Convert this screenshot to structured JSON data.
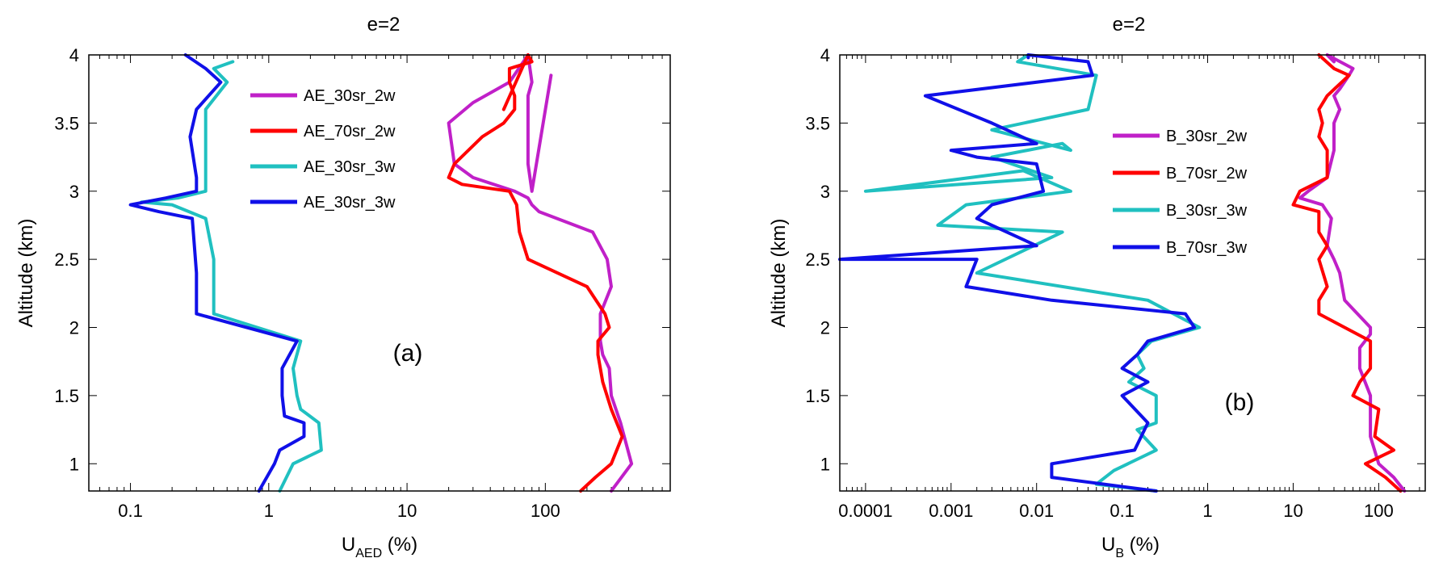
{
  "chart_data": [
    {
      "type": "line",
      "title": "e=2",
      "xlabel_main": "U",
      "xlabel_sub": "AED",
      "xlabel_unit": " (%)",
      "ylabel": "Altitude (km)",
      "annotation": "(a)",
      "xscale": "log",
      "xlim": [
        0.05,
        800
      ],
      "ylim": [
        0.8,
        4
      ],
      "xticks": [
        0.1,
        1,
        10,
        100
      ],
      "xtick_labels": [
        "0.1",
        "1",
        "10",
        "100"
      ],
      "yticks": [
        1,
        1.5,
        2,
        2.5,
        3,
        3.5,
        4
      ],
      "ytick_labels": [
        "1",
        "1.5",
        "2",
        "2.5",
        "3",
        "3.5",
        "4"
      ],
      "legend_position": "upper-center",
      "series": [
        {
          "name": "AE_30sr_2w",
          "color": "#c020c8",
          "x": [
            300,
            420,
            350,
            300,
            290,
            260,
            250,
            250,
            300,
            280,
            220,
            90,
            80,
            75,
            60,
            30,
            22,
            20,
            30,
            55,
            75,
            80,
            75,
            75,
            75,
            80,
            110
          ],
          "y": [
            0.8,
            1.0,
            1.3,
            1.5,
            1.7,
            1.8,
            1.9,
            2.1,
            2.3,
            2.5,
            2.7,
            2.85,
            2.9,
            2.95,
            3.0,
            3.1,
            3.2,
            3.5,
            3.65,
            3.8,
            4.0,
            3.8,
            3.7,
            3.5,
            3.2,
            3.0,
            3.85
          ]
        },
        {
          "name": "AE_70sr_2w",
          "color": "#ff0000",
          "x": [
            180,
            230,
            300,
            360,
            300,
            260,
            240,
            240,
            290,
            270,
            200,
            75,
            65,
            62,
            55,
            25,
            20,
            22,
            35,
            50,
            60,
            60,
            55,
            55,
            55,
            80,
            75,
            50
          ],
          "y": [
            0.8,
            0.9,
            1.0,
            1.2,
            1.4,
            1.6,
            1.8,
            1.9,
            2.0,
            2.1,
            2.3,
            2.5,
            2.7,
            2.9,
            3.0,
            3.05,
            3.1,
            3.2,
            3.4,
            3.5,
            3.6,
            3.7,
            3.8,
            3.85,
            3.9,
            3.95,
            4.0,
            3.6
          ]
        },
        {
          "name": "AE_30sr_3w",
          "color": "#20c0c0",
          "x": [
            1.2,
            1.5,
            2.4,
            2.3,
            1.7,
            1.6,
            1.5,
            1.7,
            0.4,
            0.4,
            0.35,
            0.2,
            0.12,
            0.22,
            0.35,
            0.35,
            0.35,
            0.5,
            0.4,
            0.55
          ],
          "y": [
            0.8,
            1.0,
            1.1,
            1.3,
            1.4,
            1.5,
            1.7,
            1.9,
            2.1,
            2.5,
            2.8,
            2.9,
            2.92,
            2.95,
            3.0,
            3.3,
            3.6,
            3.8,
            3.9,
            3.95
          ]
        },
        {
          "name": "AE_30sr_3w",
          "color": "#1010e8",
          "x": [
            0.85,
            1.1,
            1.2,
            1.8,
            1.8,
            1.3,
            1.25,
            1.25,
            1.6,
            0.3,
            0.3,
            0.28,
            0.16,
            0.1,
            0.18,
            0.3,
            0.3,
            0.27,
            0.3,
            0.45,
            0.35,
            0.25
          ],
          "y": [
            0.8,
            1.0,
            1.1,
            1.2,
            1.3,
            1.35,
            1.5,
            1.7,
            1.9,
            2.1,
            2.4,
            2.8,
            2.85,
            2.9,
            2.95,
            3.0,
            3.1,
            3.4,
            3.6,
            3.8,
            3.9,
            4.0
          ]
        }
      ],
      "legend_labels": [
        "AE_30sr_2w",
        "AE_70sr_2w",
        "AE_30sr_3w",
        "AE_30sr_3w"
      ]
    },
    {
      "type": "line",
      "title": "e=2",
      "xlabel_main": "U",
      "xlabel_sub": "B",
      "xlabel_unit": " (%)",
      "ylabel": "Altitude (km)",
      "annotation": "(b)",
      "xscale": "log",
      "xlim": [
        5e-05,
        350
      ],
      "ylim": [
        0.8,
        4
      ],
      "xticks": [
        0.0001,
        0.001,
        0.01,
        0.1,
        1,
        10,
        100
      ],
      "xtick_labels": [
        "0.0001",
        "0.001",
        "0.01",
        "0.1",
        "1",
        "10",
        "100"
      ],
      "yticks": [
        1,
        1.5,
        2,
        2.5,
        3,
        3.5,
        4
      ],
      "ytick_labels": [
        "1",
        "1.5",
        "2",
        "2.5",
        "3",
        "3.5",
        "4"
      ],
      "legend_position": "upper-center",
      "series": [
        {
          "name": "B_30sr_2w",
          "color": "#c020c8",
          "x": [
            200,
            150,
            100,
            80,
            80,
            60,
            60,
            80,
            80,
            40,
            35,
            30,
            25,
            28,
            22,
            12,
            15,
            25,
            30,
            30,
            35,
            30,
            35,
            45,
            50,
            25,
            30
          ],
          "y": [
            0.8,
            0.9,
            1.0,
            1.2,
            1.5,
            1.7,
            1.85,
            1.95,
            2.0,
            2.2,
            2.4,
            2.5,
            2.6,
            2.8,
            2.9,
            2.95,
            3.0,
            3.1,
            3.3,
            3.5,
            3.6,
            3.7,
            3.75,
            3.85,
            3.9,
            4.0,
            3.95
          ]
        },
        {
          "name": "B_70sr_2w",
          "color": "#ff0000",
          "x": [
            180,
            120,
            70,
            150,
            90,
            100,
            50,
            60,
            80,
            80,
            20,
            20,
            25,
            20,
            25,
            20,
            20,
            10,
            12,
            25,
            25,
            20,
            22,
            20,
            25,
            45,
            30,
            20
          ],
          "y": [
            0.8,
            0.9,
            1.0,
            1.1,
            1.2,
            1.4,
            1.5,
            1.6,
            1.7,
            1.9,
            2.1,
            2.2,
            2.3,
            2.5,
            2.6,
            2.7,
            2.85,
            2.9,
            3.0,
            3.1,
            3.3,
            3.4,
            3.5,
            3.6,
            3.7,
            3.85,
            3.9,
            4.0
          ]
        },
        {
          "name": "B_30sr_3w",
          "color": "#20c0c0",
          "x": [
            0.25,
            0.05,
            0.08,
            0.25,
            0.15,
            0.25,
            0.25,
            0.12,
            0.18,
            0.15,
            0.22,
            0.8,
            0.2,
            0.002,
            0.02,
            0.0007,
            0.0015,
            0.025,
            0.007,
            0.0001,
            0.015,
            0.003,
            0.02,
            0.025,
            0.003,
            0.04,
            0.05,
            0.006,
            0.008
          ],
          "y": [
            0.8,
            0.85,
            0.95,
            1.1,
            1.25,
            1.3,
            1.5,
            1.6,
            1.7,
            1.8,
            1.9,
            2.0,
            2.2,
            2.4,
            2.7,
            2.75,
            2.9,
            3.0,
            3.15,
            3.0,
            3.1,
            3.25,
            3.35,
            3.3,
            3.45,
            3.6,
            3.85,
            3.95,
            4.0
          ]
        },
        {
          "name": "B_70sr_3w",
          "color": "#1010e8",
          "x": [
            0.25,
            0.015,
            0.015,
            0.14,
            0.2,
            0.1,
            0.2,
            0.1,
            0.15,
            0.2,
            0.7,
            0.55,
            0.015,
            0.0015,
            0.002,
            5e-05,
            0.01,
            0.003,
            0.002,
            0.003,
            0.012,
            0.01,
            0.002,
            0.001,
            0.01,
            0.003,
            0.0005,
            0.045,
            0.04,
            0.008,
            0.008
          ],
          "y": [
            0.8,
            0.9,
            1.0,
            1.1,
            1.3,
            1.5,
            1.6,
            1.7,
            1.8,
            1.9,
            2.0,
            2.1,
            2.2,
            2.3,
            2.5,
            2.5,
            2.6,
            2.75,
            2.8,
            2.9,
            3.0,
            3.2,
            3.25,
            3.3,
            3.35,
            3.5,
            3.7,
            3.85,
            3.95,
            4.0,
            3.98
          ]
        }
      ],
      "legend_labels": [
        "B_30sr_2w",
        "B_70sr_2w",
        "B_30sr_3w",
        "B_70sr_3w"
      ]
    }
  ]
}
